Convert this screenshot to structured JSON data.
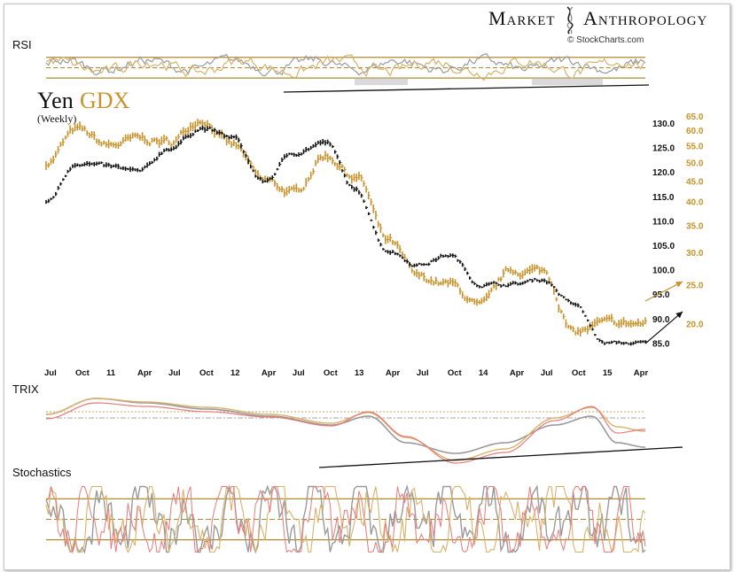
{
  "header": {
    "brand_left": "Market",
    "brand_right": "Anthropology",
    "source": "© StockCharts.com"
  },
  "labels": {
    "title_yen": "Yen",
    "title_gdx": "GDX",
    "subtitle": "(Weekly)",
    "rsi": "RSI",
    "trix": "TRIX",
    "stochastics": "Stochastics"
  },
  "colors": {
    "yen": "#111111",
    "gdx": "#c9922a",
    "gdx_light": "#d9b26a",
    "gray": "#9a9a9a",
    "pink": "#e87a7a",
    "band": "#b08a2e"
  },
  "chart_data": {
    "type": "line",
    "title": "Yen GDX",
    "subtitle": "(Weekly)",
    "x_ticks": [
      "Jul",
      "Oct",
      "11",
      "Apr",
      "Jul",
      "Oct",
      "12",
      "Apr",
      "Jul",
      "Oct",
      "13",
      "Apr",
      "Jul",
      "Oct",
      "14",
      "Apr",
      "Jul",
      "Oct",
      "15",
      "Apr"
    ],
    "x_range": [
      "2010-07",
      "2015-04"
    ],
    "left_axis": {
      "name": "Yen",
      "ticks": [
        "130.0",
        "125.0",
        "120.0",
        "115.0",
        "110.0",
        "105.0",
        "100.0",
        "95.0",
        "90.0",
        "85.0"
      ],
      "ylim": [
        82,
        132
      ]
    },
    "right_axis": {
      "name": "GDX",
      "ticks": [
        "65.0",
        "60.0",
        "55.0",
        "50.0",
        "45.0",
        "40.0",
        "35.0",
        "30.0",
        "25.0",
        "20.0"
      ],
      "scale": "log",
      "ylim": [
        16.5,
        66
      ]
    },
    "series": [
      {
        "name": "Yen",
        "x": [
          2010.5,
          2010.75,
          2011.0,
          2011.25,
          2011.5,
          2011.75,
          2012.0,
          2012.25,
          2012.5,
          2012.75,
          2013.0,
          2013.25,
          2013.5,
          2013.75,
          2014.0,
          2014.25,
          2014.5,
          2014.75,
          2015.0,
          2015.25
        ],
        "values": [
          114,
          122,
          121,
          120,
          125,
          129,
          127,
          118,
          124,
          126,
          116,
          104,
          101,
          103,
          97,
          97,
          98,
          93,
          85,
          85
        ]
      },
      {
        "name": "GDX",
        "x": [
          2010.5,
          2010.75,
          2011.0,
          2011.25,
          2011.5,
          2011.75,
          2012.0,
          2012.25,
          2012.5,
          2012.75,
          2013.0,
          2013.25,
          2013.5,
          2013.75,
          2014.0,
          2014.25,
          2014.5,
          2014.75,
          2015.0,
          2015.25
        ],
        "values": [
          50,
          60,
          55,
          57,
          56,
          64,
          55,
          45,
          42,
          52,
          46,
          32,
          26,
          25,
          22,
          27,
          27,
          19,
          20,
          20
        ]
      }
    ],
    "rsi_band": [
      30,
      70
    ],
    "stoch_band": [
      20,
      80
    ]
  }
}
